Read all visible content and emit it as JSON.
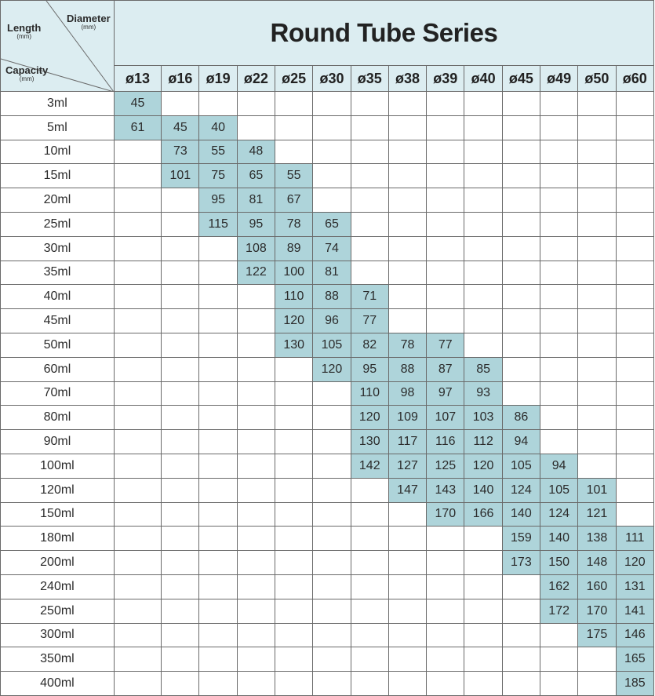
{
  "title": "Round Tube Series",
  "corner": {
    "length_label": "Length",
    "length_unit": "(mm)",
    "diameter_label": "Diameter",
    "diameter_unit": "(mm)",
    "capacity_label": "Capacity",
    "capacity_unit": "(mm)"
  },
  "colors": {
    "header_bg": "#dcedf1",
    "filled_cell": "#aed4da",
    "border": "#6a6a6a",
    "text": "#2b2b2b"
  },
  "diameters": [
    "ø13",
    "ø16",
    "ø19",
    "ø22",
    "ø25",
    "ø30",
    "ø35",
    "ø38",
    "ø39",
    "ø40",
    "ø45",
    "ø49",
    "ø50",
    "ø60"
  ],
  "rows": [
    {
      "capacity": "3ml",
      "values": [
        "45",
        "",
        "",
        "",
        "",
        "",
        "",
        "",
        "",
        "",
        "",
        "",
        "",
        ""
      ]
    },
    {
      "capacity": "5ml",
      "values": [
        "61",
        "45",
        "40",
        "",
        "",
        "",
        "",
        "",
        "",
        "",
        "",
        "",
        "",
        ""
      ]
    },
    {
      "capacity": "10ml",
      "values": [
        "",
        "73",
        "55",
        "48",
        "",
        "",
        "",
        "",
        "",
        "",
        "",
        "",
        "",
        ""
      ]
    },
    {
      "capacity": "15ml",
      "values": [
        "",
        "101",
        "75",
        "65",
        "55",
        "",
        "",
        "",
        "",
        "",
        "",
        "",
        "",
        ""
      ]
    },
    {
      "capacity": "20ml",
      "values": [
        "",
        "",
        "95",
        "81",
        "67",
        "",
        "",
        "",
        "",
        "",
        "",
        "",
        "",
        ""
      ]
    },
    {
      "capacity": "25ml",
      "values": [
        "",
        "",
        "115",
        "95",
        "78",
        "65",
        "",
        "",
        "",
        "",
        "",
        "",
        "",
        ""
      ]
    },
    {
      "capacity": "30ml",
      "values": [
        "",
        "",
        "",
        "108",
        "89",
        "74",
        "",
        "",
        "",
        "",
        "",
        "",
        "",
        ""
      ]
    },
    {
      "capacity": "35ml",
      "values": [
        "",
        "",
        "",
        "122",
        "100",
        "81",
        "",
        "",
        "",
        "",
        "",
        "",
        "",
        ""
      ]
    },
    {
      "capacity": "40ml",
      "values": [
        "",
        "",
        "",
        "",
        "110",
        "88",
        "71",
        "",
        "",
        "",
        "",
        "",
        "",
        ""
      ]
    },
    {
      "capacity": "45ml",
      "values": [
        "",
        "",
        "",
        "",
        "120",
        "96",
        "77",
        "",
        "",
        "",
        "",
        "",
        "",
        ""
      ]
    },
    {
      "capacity": "50ml",
      "values": [
        "",
        "",
        "",
        "",
        "130",
        "105",
        "82",
        "78",
        "77",
        "",
        "",
        "",
        "",
        ""
      ]
    },
    {
      "capacity": "60ml",
      "values": [
        "",
        "",
        "",
        "",
        "",
        "120",
        "95",
        "88",
        "87",
        "85",
        "",
        "",
        "",
        ""
      ]
    },
    {
      "capacity": "70ml",
      "values": [
        "",
        "",
        "",
        "",
        "",
        "",
        "110",
        "98",
        "97",
        "93",
        "",
        "",
        "",
        ""
      ]
    },
    {
      "capacity": "80ml",
      "values": [
        "",
        "",
        "",
        "",
        "",
        "",
        "120",
        "109",
        "107",
        "103",
        "86",
        "",
        "",
        ""
      ]
    },
    {
      "capacity": "90ml",
      "values": [
        "",
        "",
        "",
        "",
        "",
        "",
        "130",
        "117",
        "116",
        "112",
        "94",
        "",
        "",
        ""
      ]
    },
    {
      "capacity": "100ml",
      "values": [
        "",
        "",
        "",
        "",
        "",
        "",
        "142",
        "127",
        "125",
        "120",
        "105",
        "94",
        "",
        ""
      ]
    },
    {
      "capacity": "120ml",
      "values": [
        "",
        "",
        "",
        "",
        "",
        "",
        "",
        "147",
        "143",
        "140",
        "124",
        "105",
        "101",
        ""
      ]
    },
    {
      "capacity": "150ml",
      "values": [
        "",
        "",
        "",
        "",
        "",
        "",
        "",
        "",
        "170",
        "166",
        "140",
        "124",
        "121",
        ""
      ]
    },
    {
      "capacity": "180ml",
      "values": [
        "",
        "",
        "",
        "",
        "",
        "",
        "",
        "",
        "",
        "",
        "159",
        "140",
        "138",
        "111"
      ]
    },
    {
      "capacity": "200ml",
      "values": [
        "",
        "",
        "",
        "",
        "",
        "",
        "",
        "",
        "",
        "",
        "173",
        "150",
        "148",
        "120"
      ]
    },
    {
      "capacity": "240ml",
      "values": [
        "",
        "",
        "",
        "",
        "",
        "",
        "",
        "",
        "",
        "",
        "",
        "162",
        "160",
        "131"
      ]
    },
    {
      "capacity": "250ml",
      "values": [
        "",
        "",
        "",
        "",
        "",
        "",
        "",
        "",
        "",
        "",
        "",
        "172",
        "170",
        "141"
      ]
    },
    {
      "capacity": "300ml",
      "values": [
        "",
        "",
        "",
        "",
        "",
        "",
        "",
        "",
        "",
        "",
        "",
        "",
        "175",
        "146"
      ]
    },
    {
      "capacity": "350ml",
      "values": [
        "",
        "",
        "",
        "",
        "",
        "",
        "",
        "",
        "",
        "",
        "",
        "",
        "",
        "165"
      ]
    },
    {
      "capacity": "400ml",
      "values": [
        "",
        "",
        "",
        "",
        "",
        "",
        "",
        "",
        "",
        "",
        "",
        "",
        "",
        "185"
      ]
    }
  ]
}
